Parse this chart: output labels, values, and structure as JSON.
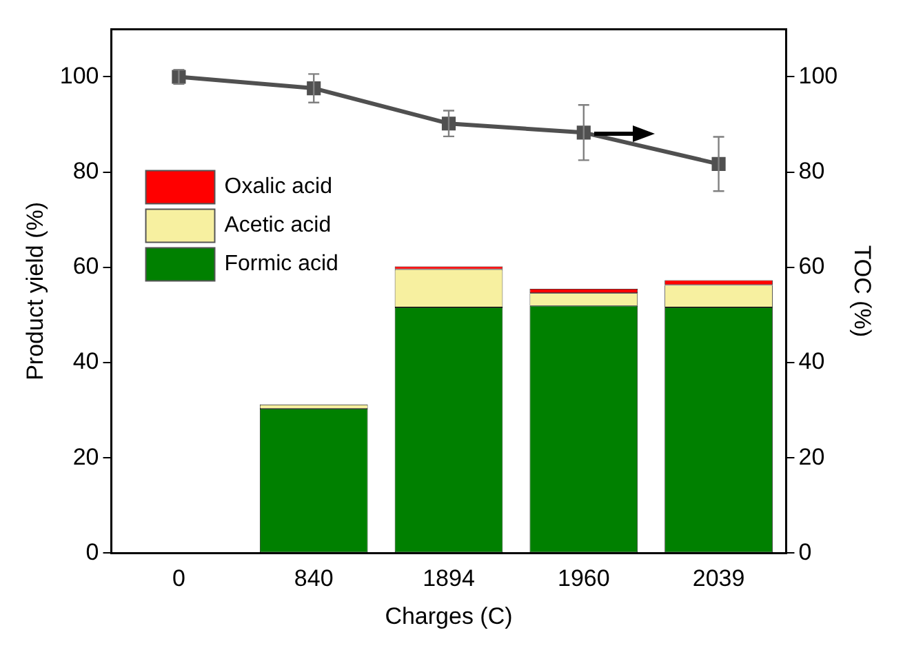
{
  "chart_data": {
    "type": "bar",
    "xlabel": "Charges (C)",
    "ylabel": "Product yield (%)",
    "y2label": "TOC (%)",
    "categories": [
      "0",
      "840",
      "1894",
      "1960",
      "2039"
    ],
    "stacked": true,
    "legend": "top left",
    "ylim": [
      0,
      110
    ],
    "yticks": [
      0,
      20,
      40,
      60,
      80,
      100
    ],
    "y2lim": [
      0,
      110
    ],
    "y2ticks": [
      0,
      20,
      40,
      60,
      80,
      100
    ],
    "grid": false,
    "series": [
      {
        "name": "Formic acid",
        "color": "#008000",
        "values": [
          null,
          30.3,
          51.6,
          51.9,
          51.6
        ]
      },
      {
        "name": "Acetic acid",
        "color": "#f7f0a0",
        "values": [
          null,
          0.9,
          8.0,
          2.7,
          4.7
        ]
      },
      {
        "name": "Oxalic acid",
        "color": "#ff0000",
        "values": [
          null,
          null,
          0.6,
          0.9,
          1.0
        ]
      },
      {
        "type": "line",
        "axis": "y2",
        "color": "#505050",
        "marker": "square",
        "values": [
          100,
          97.6,
          90.2,
          88.3,
          81.7
        ],
        "errors": [
          1.5,
          3,
          2.7,
          5.8,
          5.7
        ]
      }
    ]
  }
}
